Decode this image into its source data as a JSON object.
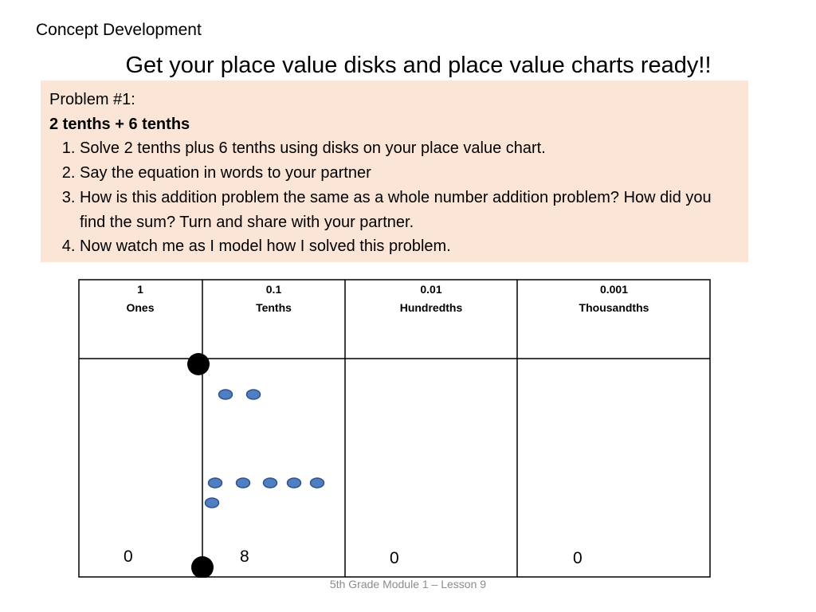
{
  "slide": {
    "section_label": "Concept Development",
    "title": "Get your place value disks and place value charts ready!!",
    "footer": "5th Grade Module 1 – Lesson 9"
  },
  "problem": {
    "heading": "Problem #1:",
    "subheading": "2 tenths + 6 tenths",
    "steps": [
      "Solve 2 tenths plus 6 tenths using disks on your place value chart.",
      "Say the equation in words to your partner",
      "How is this addition problem the same as a whole number addition problem?  How did you find the sum?  Turn and share with your partner.",
      "Now watch me as I model how I solved this problem."
    ]
  },
  "place_value_chart": {
    "columns": [
      {
        "value": "1",
        "name": "Ones",
        "digit": "0"
      },
      {
        "value": "0.1",
        "name": "Tenths",
        "digit": "8"
      },
      {
        "value": "0.01",
        "name": "Hundredths",
        "digit": "0"
      },
      {
        "value": "0.001",
        "name": "Thousandths",
        "digit": "0"
      }
    ],
    "disk_groups": [
      {
        "column": "Tenths",
        "count": 2
      },
      {
        "column": "Tenths",
        "count": 6
      }
    ],
    "colors": {
      "disk_fill": "#4f7fc0",
      "disk_stroke": "#2e528f",
      "problem_box": "#fbe5d6",
      "decimal_point": "#000000"
    }
  }
}
